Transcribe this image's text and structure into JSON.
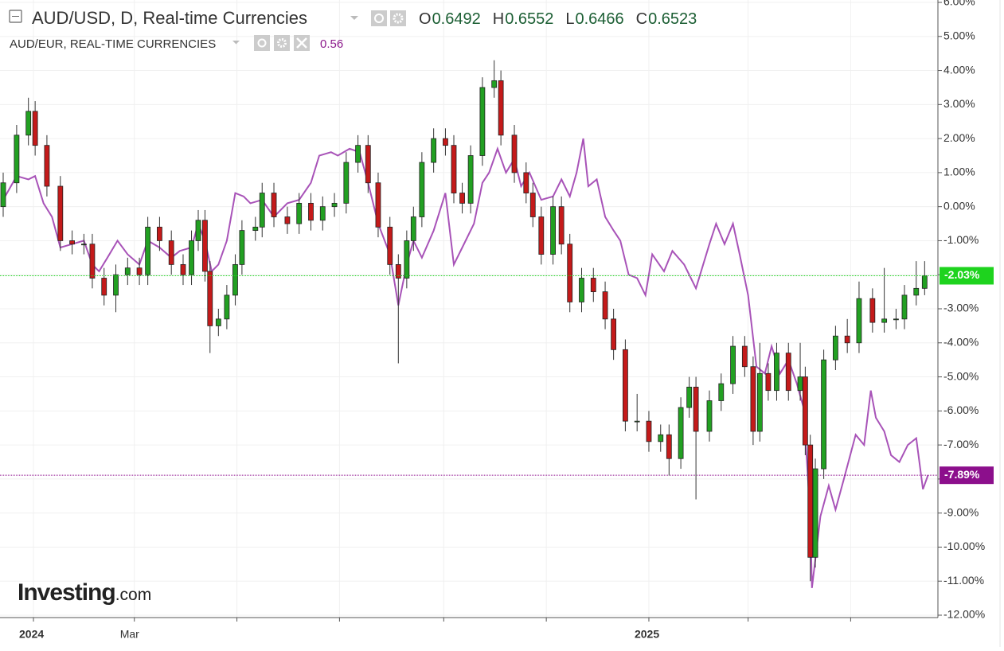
{
  "chart_data": {
    "type": "candlestick",
    "title": "AUD/USD, D, Real-time Currencies",
    "ohlc_legend": [
      {
        "label": "O",
        "value": 0.6492
      },
      {
        "label": "H",
        "value": 0.6552
      },
      {
        "label": "L",
        "value": 0.6466
      },
      {
        "label": "C",
        "value": 0.6523
      }
    ],
    "overlay_title": "AUD/EUR, REAL-TIME CURRENCIES",
    "overlay_value": 0.56,
    "watermark": [
      "Investing",
      ".com"
    ],
    "xlim": [
      -19.9,
      537.9
    ],
    "xticks": [
      {
        "value": 0,
        "label": "2024"
      },
      {
        "value": 60,
        "label": "Mar"
      },
      {
        "value": 121,
        "label": null
      },
      {
        "value": 182,
        "label": null
      },
      {
        "value": 244,
        "label": null
      },
      {
        "value": 305,
        "label": null
      },
      {
        "value": 366,
        "label": "2025"
      },
      {
        "value": 425,
        "label": null
      },
      {
        "value": 486,
        "label": null
      }
    ],
    "ylim": [
      -12.07,
      6.07
    ],
    "yticks": [
      {
        "value": 6,
        "label": "6.00%"
      },
      {
        "value": 5,
        "label": "5.00%"
      },
      {
        "value": 4,
        "label": "4.00%"
      },
      {
        "value": 3,
        "label": "3.00%"
      },
      {
        "value": 2,
        "label": "2.00%"
      },
      {
        "value": 1,
        "label": "1.00%"
      },
      {
        "value": 0,
        "label": "0.00%"
      },
      {
        "value": -1,
        "label": "-1.00%"
      },
      {
        "value": -2,
        "label": "-2.00%"
      },
      {
        "value": -3,
        "label": "-3.00%"
      },
      {
        "value": -4,
        "label": "-4.00%"
      },
      {
        "value": -5,
        "label": "-5.00%"
      },
      {
        "value": -6,
        "label": "-6.00%"
      },
      {
        "value": -7,
        "label": "-7.00%"
      },
      {
        "value": -8,
        "label": "-8.00%"
      },
      {
        "value": -9,
        "label": "-9.00%"
      },
      {
        "value": -10,
        "label": "-10.00%"
      },
      {
        "value": -11,
        "label": "-11.00%"
      },
      {
        "value": -12,
        "label": "-12.00%"
      }
    ],
    "grid": true,
    "series": [
      {
        "name": "AUD/USD",
        "kind": "candlestick",
        "up_color": "#22a022",
        "down_color": "#c41a1a",
        "last_color": "#1ed31e",
        "last_value_label": "-2.03%",
        "x": [
          -18,
          -10,
          -3,
          1,
          8,
          16,
          23,
          30,
          35,
          42,
          49,
          56,
          63,
          68,
          75,
          82,
          89,
          94,
          98,
          102,
          105,
          110,
          115,
          120,
          124,
          132,
          136,
          143,
          151,
          158,
          165,
          172,
          179,
          186,
          193,
          199,
          205,
          212,
          217,
          222,
          226,
          231,
          238,
          245,
          250,
          255,
          260,
          267,
          274,
          278,
          286,
          293,
          297,
          302,
          309,
          314,
          319,
          326,
          333,
          340,
          345,
          352,
          359,
          366,
          373,
          378,
          385,
          390,
          394,
          402,
          409,
          416,
          423,
          428,
          432,
          437,
          442,
          449,
          456,
          459,
          462,
          465,
          470,
          477,
          484,
          491,
          499,
          506,
          513,
          518,
          525,
          530
        ],
        "open": [
          0.0,
          0.7,
          2.1,
          2.8,
          1.8,
          0.6,
          -1.0,
          -1.1,
          -1.1,
          -2.1,
          -2.6,
          -2.0,
          -1.8,
          -2.0,
          -0.6,
          -1.0,
          -1.7,
          -2.0,
          -1.0,
          -0.4,
          -1.9,
          -3.5,
          -3.3,
          -2.6,
          -1.7,
          -0.7,
          -0.6,
          0.4,
          -0.3,
          -0.5,
          0.1,
          -0.4,
          0.0,
          0.1,
          1.3,
          1.8,
          0.7,
          -0.6,
          -1.7,
          -2.1,
          -1.0,
          -0.3,
          1.3,
          2.0,
          1.8,
          0.4,
          0.1,
          1.5,
          3.5,
          3.7,
          2.1,
          1.0,
          0.4,
          -0.3,
          -1.4,
          0.0,
          -1.1,
          -2.8,
          -2.1,
          -2.5,
          -3.3,
          -4.2,
          -6.3,
          -6.3,
          -6.9,
          -6.7,
          -7.4,
          -5.9,
          -5.3,
          -6.6,
          -5.7,
          -5.2,
          -4.1,
          -4.7,
          -6.6,
          -4.9,
          -5.4,
          -4.3,
          -5.4,
          -5.0,
          -7.0,
          -10.3,
          -7.7,
          -4.5,
          -3.8,
          -4.0,
          -2.7,
          -3.4,
          -3.3,
          -3.3,
          -2.6,
          -2.4
        ],
        "high": [
          1.0,
          2.4,
          3.2,
          3.1,
          2.1,
          0.9,
          -0.7,
          -0.8,
          -0.8,
          -1.8,
          -1.7,
          -1.5,
          -1.5,
          -0.3,
          -0.3,
          -0.7,
          -1.4,
          -0.7,
          -0.1,
          -0.1,
          -1.6,
          -3.0,
          -2.3,
          -1.4,
          -0.4,
          -0.3,
          0.7,
          0.7,
          0.0,
          0.4,
          0.4,
          0.3,
          0.4,
          1.6,
          2.1,
          2.1,
          1.0,
          -0.3,
          -1.4,
          -0.7,
          0.0,
          1.6,
          2.3,
          2.3,
          2.1,
          0.7,
          1.8,
          3.8,
          4.3,
          4.0,
          2.4,
          1.3,
          0.7,
          0.0,
          0.3,
          0.3,
          -0.8,
          -1.8,
          -1.8,
          -2.2,
          -3.0,
          -3.9,
          -5.5,
          -6.0,
          -6.4,
          -6.4,
          -5.6,
          -5.0,
          -5.0,
          -5.4,
          -4.9,
          -3.8,
          -3.8,
          -4.4,
          -4.0,
          -4.6,
          -4.0,
          -4.0,
          -4.0,
          -4.7,
          -6.7,
          -7.4,
          -4.2,
          -3.5,
          -3.3,
          -2.2,
          -2.4,
          -1.8,
          -3.0,
          -2.3,
          -1.6,
          -1.6
        ],
        "low": [
          -0.3,
          0.4,
          1.8,
          1.5,
          0.3,
          -1.3,
          -1.4,
          -1.4,
          -2.4,
          -2.9,
          -3.1,
          -2.3,
          -2.3,
          -2.3,
          -1.3,
          -2.0,
          -2.3,
          -2.3,
          -1.3,
          -2.2,
          -4.3,
          -3.8,
          -3.6,
          -2.9,
          -2.0,
          -1.0,
          -0.9,
          -0.6,
          -0.8,
          -0.8,
          -0.7,
          -0.7,
          -0.3,
          -0.2,
          1.0,
          0.4,
          -0.9,
          -2.0,
          -4.6,
          -2.4,
          -1.3,
          -0.6,
          1.0,
          1.5,
          0.1,
          -0.2,
          -0.2,
          1.2,
          3.2,
          1.8,
          0.7,
          0.1,
          -0.6,
          -1.7,
          -1.7,
          -1.4,
          -3.1,
          -3.1,
          -2.8,
          -3.6,
          -4.5,
          -6.6,
          -6.6,
          -7.2,
          -7.2,
          -7.9,
          -7.7,
          -6.2,
          -8.6,
          -6.9,
          -6.0,
          -5.5,
          -5.0,
          -7.0,
          -6.9,
          -5.7,
          -5.7,
          -5.7,
          -5.7,
          -7.3,
          -11.0,
          -10.6,
          -8.0,
          -4.8,
          -4.3,
          -4.3,
          -3.7,
          -3.7,
          -3.6,
          -3.6,
          -2.9,
          -2.6
        ],
        "close": [
          0.7,
          2.1,
          2.8,
          1.8,
          0.6,
          -1.0,
          -1.1,
          -1.1,
          -2.1,
          -2.6,
          -2.0,
          -1.8,
          -2.0,
          -0.6,
          -1.0,
          -1.7,
          -2.0,
          -1.0,
          -0.4,
          -1.9,
          -3.5,
          -3.3,
          -2.6,
          -1.7,
          -0.7,
          -0.6,
          0.4,
          -0.3,
          -0.5,
          0.1,
          -0.4,
          0.0,
          0.1,
          1.3,
          1.8,
          0.7,
          -0.6,
          -1.7,
          -2.1,
          -1.0,
          -0.3,
          1.3,
          2.0,
          1.8,
          0.4,
          0.1,
          1.5,
          3.5,
          3.7,
          2.1,
          1.0,
          0.4,
          -0.3,
          -1.4,
          0.0,
          -1.1,
          -2.8,
          -2.1,
          -2.5,
          -3.3,
          -4.2,
          -6.3,
          -6.3,
          -6.9,
          -6.7,
          -7.4,
          -5.9,
          -5.3,
          -6.6,
          -5.7,
          -5.2,
          -4.1,
          -4.7,
          -6.6,
          -4.9,
          -5.4,
          -4.3,
          -5.4,
          -5.0,
          -7.0,
          -10.3,
          -7.7,
          -4.5,
          -3.8,
          -4.0,
          -2.7,
          -3.4,
          -3.3,
          -3.3,
          -2.6,
          -2.4,
          -2.03
        ]
      },
      {
        "name": "AUD/EUR",
        "kind": "line",
        "color": "#a853b8",
        "last_color": "#8c0f8c",
        "last_value_label": "-7.89%",
        "x": [
          -18,
          -10,
          -3,
          1,
          6,
          11,
          16,
          23,
          30,
          35,
          39,
          44,
          50,
          56,
          63,
          68,
          75,
          82,
          87,
          94,
          98,
          102,
          106,
          110,
          115,
          120,
          125,
          129,
          136,
          143,
          151,
          158,
          165,
          170,
          177,
          181,
          188,
          194,
          199,
          205,
          212,
          217,
          222,
          226,
          231,
          238,
          245,
          250,
          255,
          262,
          267,
          271,
          276,
          281,
          286,
          290,
          295,
          302,
          309,
          314,
          319,
          323,
          327,
          330,
          335,
          340,
          345,
          349,
          354,
          359,
          364,
          368,
          375,
          380,
          387,
          394,
          402,
          406,
          411,
          416,
          420,
          425,
          430,
          435,
          439,
          444,
          449,
          454,
          458,
          462,
          463,
          468,
          473,
          477,
          482,
          489,
          494,
          498,
          501,
          506,
          510,
          515,
          520,
          525,
          529,
          532
        ],
        "values": [
          0.2,
          0.9,
          0.8,
          0.9,
          0.1,
          -0.3,
          -1.2,
          -1.1,
          -1.0,
          -1.7,
          -1.9,
          -1.5,
          -1.0,
          -1.4,
          -1.7,
          -1.0,
          -1.2,
          -1.5,
          -1.3,
          -1.2,
          -0.5,
          -1.0,
          -1.9,
          -1.7,
          -1.0,
          0.4,
          0.3,
          0.1,
          0.2,
          -0.3,
          0.1,
          0.2,
          0.7,
          1.5,
          1.6,
          1.5,
          1.7,
          1.6,
          0.7,
          -0.5,
          -1.4,
          -2.9,
          -1.7,
          -1.0,
          -1.5,
          -0.7,
          0.4,
          -1.7,
          -1.2,
          -0.5,
          0.7,
          1.0,
          1.7,
          1.0,
          1.4,
          0.6,
          1.0,
          0.2,
          0.3,
          0.8,
          0.3,
          1.0,
          2.0,
          0.6,
          0.8,
          -0.3,
          -0.7,
          -1.0,
          -2.0,
          -2.1,
          -2.6,
          -1.4,
          -1.9,
          -1.3,
          -1.7,
          -2.4,
          -1.1,
          -0.5,
          -1.1,
          -0.5,
          -1.4,
          -2.6,
          -4.7,
          -4.9,
          -4.1,
          -4.9,
          -4.5,
          -5.2,
          -5.9,
          -9.1,
          -11.2,
          -9.1,
          -8.2,
          -8.9,
          -8.0,
          -6.7,
          -7.0,
          -5.4,
          -6.2,
          -6.6,
          -7.3,
          -7.5,
          -7.0,
          -6.8,
          -8.3,
          -7.89
        ]
      }
    ]
  }
}
